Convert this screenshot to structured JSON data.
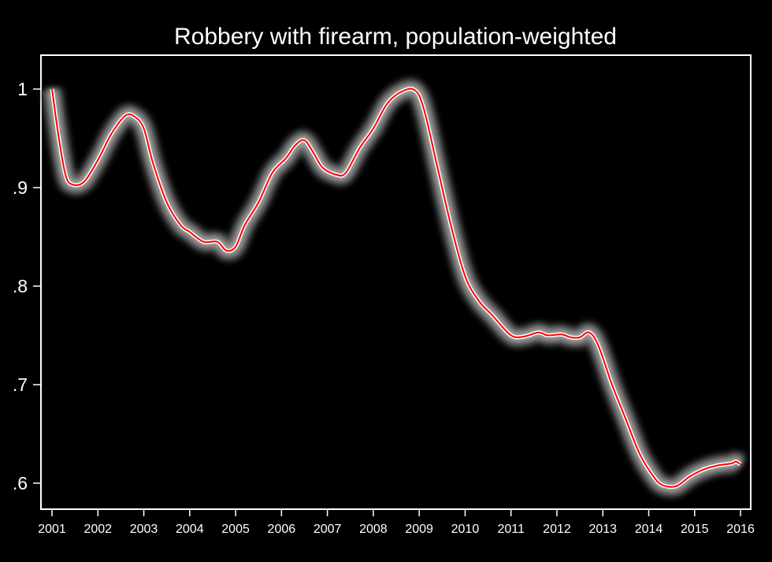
{
  "chart_data": {
    "type": "line",
    "title": "Robbery with firearm, population-weighted",
    "xlabel": "",
    "ylabel": "",
    "xlim": [
      2001,
      2016
    ],
    "ylim": [
      0.575,
      1.035
    ],
    "x_ticks": [
      "2001",
      "2002",
      "2003",
      "2004",
      "2005",
      "2006",
      "2007",
      "2008",
      "2009",
      "2010",
      "2011",
      "2012",
      "2013",
      "2014",
      "2015",
      "2016"
    ],
    "y_ticks": [
      {
        "value": 1,
        "label": "1"
      },
      {
        "value": 0.9,
        "label": ".9"
      },
      {
        "value": 0.8,
        "label": ".8"
      },
      {
        "value": 0.7,
        "label": ".7"
      },
      {
        "value": 0.6,
        "label": ".6"
      }
    ],
    "grid": false,
    "colors": {
      "background": "#000000",
      "line": "#ff0000",
      "band": "#ffffff",
      "axis": "#ffffff"
    },
    "series": [
      {
        "x": [
          2001.0,
          2001.15,
          2001.3,
          2001.45,
          2001.7,
          2002.0,
          2002.3,
          2002.6,
          2002.8,
          2003.0,
          2003.2,
          2003.5,
          2003.8,
          2004.0,
          2004.3,
          2004.6,
          2004.8,
          2005.0,
          2005.2,
          2005.5,
          2005.8,
          2006.1,
          2006.3,
          2006.5,
          2006.7,
          2006.9,
          2007.2,
          2007.4,
          2007.7,
          2008.0,
          2008.3,
          2008.6,
          2008.9,
          2009.1,
          2009.4,
          2009.7,
          2010.0,
          2010.3,
          2010.6,
          2011.0,
          2011.3,
          2011.6,
          2011.8,
          2012.1,
          2012.3,
          2012.5,
          2012.7,
          2012.9,
          2013.2,
          2013.5,
          2013.8,
          2014.1,
          2014.3,
          2014.6,
          2014.9,
          2015.2,
          2015.5,
          2015.8,
          2015.9,
          2016.0
        ],
        "y": [
          1.0,
          0.95,
          0.912,
          0.903,
          0.906,
          0.928,
          0.955,
          0.973,
          0.972,
          0.96,
          0.925,
          0.885,
          0.862,
          0.855,
          0.845,
          0.845,
          0.836,
          0.84,
          0.862,
          0.885,
          0.915,
          0.93,
          0.943,
          0.948,
          0.935,
          0.92,
          0.913,
          0.915,
          0.94,
          0.96,
          0.985,
          0.997,
          0.999,
          0.98,
          0.92,
          0.86,
          0.81,
          0.785,
          0.77,
          0.75,
          0.749,
          0.753,
          0.75,
          0.751,
          0.748,
          0.748,
          0.753,
          0.74,
          0.7,
          0.665,
          0.63,
          0.607,
          0.598,
          0.597,
          0.607,
          0.614,
          0.618,
          0.62,
          0.622,
          0.619
        ]
      }
    ]
  }
}
